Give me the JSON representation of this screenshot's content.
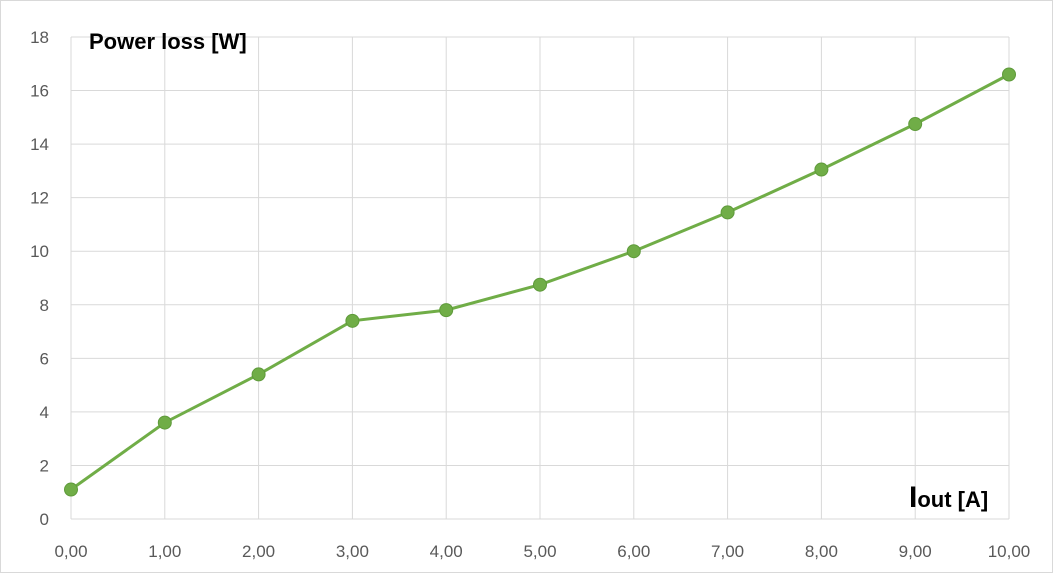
{
  "chart_data": {
    "type": "line",
    "ylabel": "Power loss [W]",
    "xlabel_main": "I",
    "xlabel_sub": "out [A]",
    "x": [
      "0,00",
      "1,00",
      "2,00",
      "3,00",
      "4,00",
      "5,00",
      "6,00",
      "7,00",
      "8,00",
      "9,00",
      "10,00"
    ],
    "y_ticks": [
      "0",
      "2",
      "4",
      "6",
      "8",
      "10",
      "12",
      "14",
      "16",
      "18"
    ],
    "series": [
      {
        "values": [
          1.1,
          3.6,
          5.4,
          7.4,
          7.8,
          8.75,
          10.0,
          11.45,
          13.05,
          14.75,
          16.6
        ]
      }
    ],
    "ylim": [
      0,
      18
    ],
    "grid": true,
    "legend": "none",
    "color": "#70ad47",
    "marker_color": "#70ad47"
  }
}
